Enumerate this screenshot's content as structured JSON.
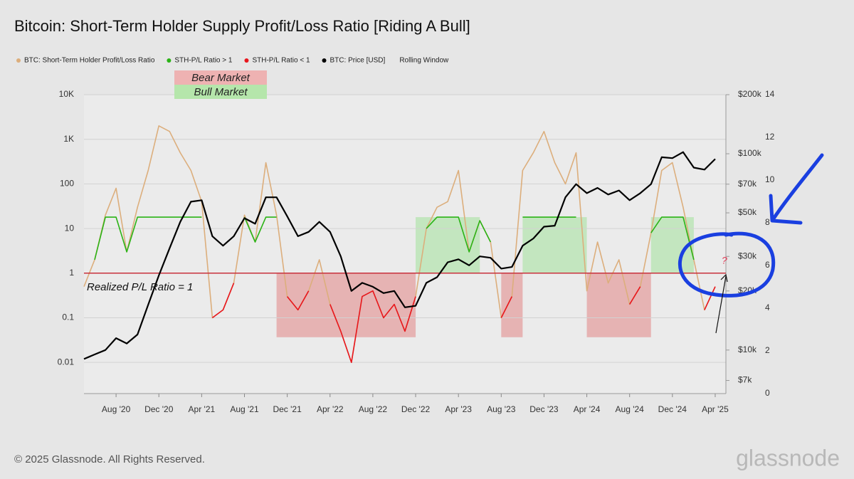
{
  "chart_data": {
    "type": "line",
    "title": "Bitcoin: Short-Term Holder Supply Profit/Loss Ratio [Riding A Bull]",
    "x": [
      "2020-05",
      "2020-06",
      "2020-07",
      "2020-08",
      "2020-09",
      "2020-10",
      "2020-11",
      "2020-12",
      "2021-01",
      "2021-02",
      "2021-03",
      "2021-04",
      "2021-05",
      "2021-06",
      "2021-07",
      "2021-08",
      "2021-09",
      "2021-10",
      "2021-11",
      "2021-12",
      "2022-01",
      "2022-02",
      "2022-03",
      "2022-04",
      "2022-05",
      "2022-06",
      "2022-07",
      "2022-08",
      "2022-09",
      "2022-10",
      "2022-11",
      "2022-12",
      "2023-01",
      "2023-02",
      "2023-03",
      "2023-04",
      "2023-05",
      "2023-06",
      "2023-07",
      "2023-08",
      "2023-09",
      "2023-10",
      "2023-11",
      "2023-12",
      "2024-01",
      "2024-02",
      "2024-03",
      "2024-04",
      "2024-05",
      "2024-06",
      "2024-07",
      "2024-08",
      "2024-09",
      "2024-10",
      "2024-11",
      "2024-12",
      "2025-01",
      "2025-02",
      "2025-03",
      "2025-04"
    ],
    "xlim": [
      "2020-05",
      "2025-05"
    ],
    "xticks": [
      {
        "value": "2020-08",
        "label": "Aug '20"
      },
      {
        "value": "2020-12",
        "label": "Dec '20"
      },
      {
        "value": "2021-04",
        "label": "Apr '21"
      },
      {
        "value": "2021-08",
        "label": "Aug '21"
      },
      {
        "value": "2021-12",
        "label": "Dec '21"
      },
      {
        "value": "2022-04",
        "label": "Apr '22"
      },
      {
        "value": "2022-08",
        "label": "Aug '22"
      },
      {
        "value": "2022-12",
        "label": "Dec '22"
      },
      {
        "value": "2023-04",
        "label": "Apr '23"
      },
      {
        "value": "2023-08",
        "label": "Aug '23"
      },
      {
        "value": "2023-12",
        "label": "Dec '23"
      },
      {
        "value": "2024-04",
        "label": "Apr '24"
      },
      {
        "value": "2024-08",
        "label": "Aug '24"
      },
      {
        "value": "2024-12",
        "label": "Dec '24"
      },
      {
        "value": "2025-04",
        "label": "Apr '25"
      }
    ],
    "ylog": true,
    "ylim": [
      0.002,
      10000
    ],
    "yticks": [
      0.01,
      0.1,
      1,
      10,
      100,
      {
        "value": 1000,
        "label": "1K"
      },
      {
        "value": 10000,
        "label": "10K"
      }
    ],
    "y2log": true,
    "y2lim": [
      6000,
      200000
    ],
    "y2ticks": [
      {
        "value": 7000,
        "label": "$7k"
      },
      {
        "value": 10000,
        "label": "$10k"
      },
      {
        "value": 20000,
        "label": "$20k"
      },
      {
        "value": 30000,
        "label": "$30k"
      },
      {
        "value": 50000,
        "label": "$50k"
      },
      {
        "value": 70000,
        "label": "$70k"
      },
      {
        "value": 100000,
        "label": "$100k"
      },
      {
        "value": 200000,
        "label": "$200k"
      }
    ],
    "y3lim": [
      0,
      14
    ],
    "y3ticks": [
      0,
      2,
      4,
      6,
      8,
      10,
      12,
      14
    ],
    "grid": true,
    "legend_position": "top-left",
    "series": [
      {
        "name": "BTC: Short-Term Holder Profit/Loss Ratio",
        "color": "#dcae7c",
        "values": [
          0.5,
          2,
          20,
          80,
          3,
          30,
          200,
          2000,
          1500,
          500,
          200,
          40,
          0.1,
          0.15,
          0.6,
          20,
          5,
          300,
          20,
          0.3,
          0.15,
          0.4,
          2,
          0.2,
          0.05,
          0.01,
          0.3,
          0.4,
          0.1,
          0.2,
          0.05,
          0.3,
          10,
          30,
          40,
          200,
          3,
          15,
          5,
          0.1,
          0.3,
          200,
          500,
          1500,
          300,
          100,
          500,
          0.4,
          5,
          0.6,
          2,
          0.2,
          0.5,
          8,
          200,
          300,
          30,
          2,
          0.15,
          0.5
        ]
      },
      {
        "name": "STH-P/L Ratio > 1",
        "color": "#2bb316",
        "values": [
          null,
          2,
          18,
          18,
          3,
          18,
          18,
          18,
          18,
          18,
          18,
          18,
          null,
          null,
          null,
          18,
          5,
          18,
          18,
          null,
          null,
          null,
          2,
          null,
          null,
          null,
          null,
          null,
          null,
          null,
          null,
          null,
          10,
          18,
          18,
          18,
          3,
          15,
          5,
          null,
          null,
          18,
          18,
          18,
          18,
          18,
          18,
          null,
          5,
          null,
          2,
          null,
          null,
          8,
          18,
          18,
          18,
          2,
          null,
          null
        ]
      },
      {
        "name": "STH-P/L Ratio < 1",
        "color": "#e8161d",
        "values": [
          0.5,
          null,
          null,
          null,
          null,
          null,
          null,
          null,
          null,
          null,
          null,
          null,
          0.1,
          0.15,
          0.6,
          null,
          null,
          null,
          null,
          0.3,
          0.15,
          0.4,
          null,
          0.2,
          0.05,
          0.01,
          0.3,
          0.4,
          0.1,
          0.2,
          0.05,
          0.3,
          null,
          null,
          null,
          null,
          null,
          null,
          null,
          0.1,
          0.3,
          null,
          null,
          null,
          null,
          null,
          null,
          0.4,
          null,
          0.6,
          null,
          0.2,
          0.5,
          null,
          null,
          null,
          null,
          null,
          0.15,
          0.5
        ]
      },
      {
        "name": "BTC: Price [USD]",
        "color": "#000000",
        "axis": "y2",
        "values": [
          9000,
          9500,
          10000,
          11500,
          10800,
          12000,
          17000,
          24000,
          33000,
          45000,
          57000,
          58000,
          38000,
          34000,
          38000,
          47000,
          44000,
          60000,
          60000,
          48000,
          38000,
          40000,
          45000,
          40000,
          30000,
          20000,
          22000,
          21000,
          19500,
          20000,
          16500,
          16800,
          22000,
          23500,
          28000,
          29000,
          27000,
          30000,
          29500,
          26000,
          26500,
          34000,
          37000,
          42500,
          43000,
          60000,
          70000,
          63000,
          67000,
          62000,
          65000,
          58000,
          63000,
          70000,
          96000,
          95000,
          102000,
          85000,
          83000,
          94000
        ]
      }
    ],
    "legend_extra": "Rolling Window",
    "reference_line": 1,
    "bear_periods": [
      [
        "2021-11",
        "2022-12"
      ],
      [
        "2023-08",
        "2023-10"
      ],
      [
        "2024-04",
        "2024-10"
      ]
    ],
    "bull_periods": [
      [
        "2022-12",
        "2023-06"
      ],
      [
        "2023-10",
        "2024-04"
      ],
      [
        "2024-10",
        "2025-02"
      ]
    ],
    "annotations": {
      "bear": "Bear Market",
      "bull": "Bull Market",
      "reference": "Realized P/L Ratio = 1",
      "question": "?"
    }
  },
  "footer": "© 2025 Glassnode. All Rights Reserved.",
  "watermark": "glassnode"
}
